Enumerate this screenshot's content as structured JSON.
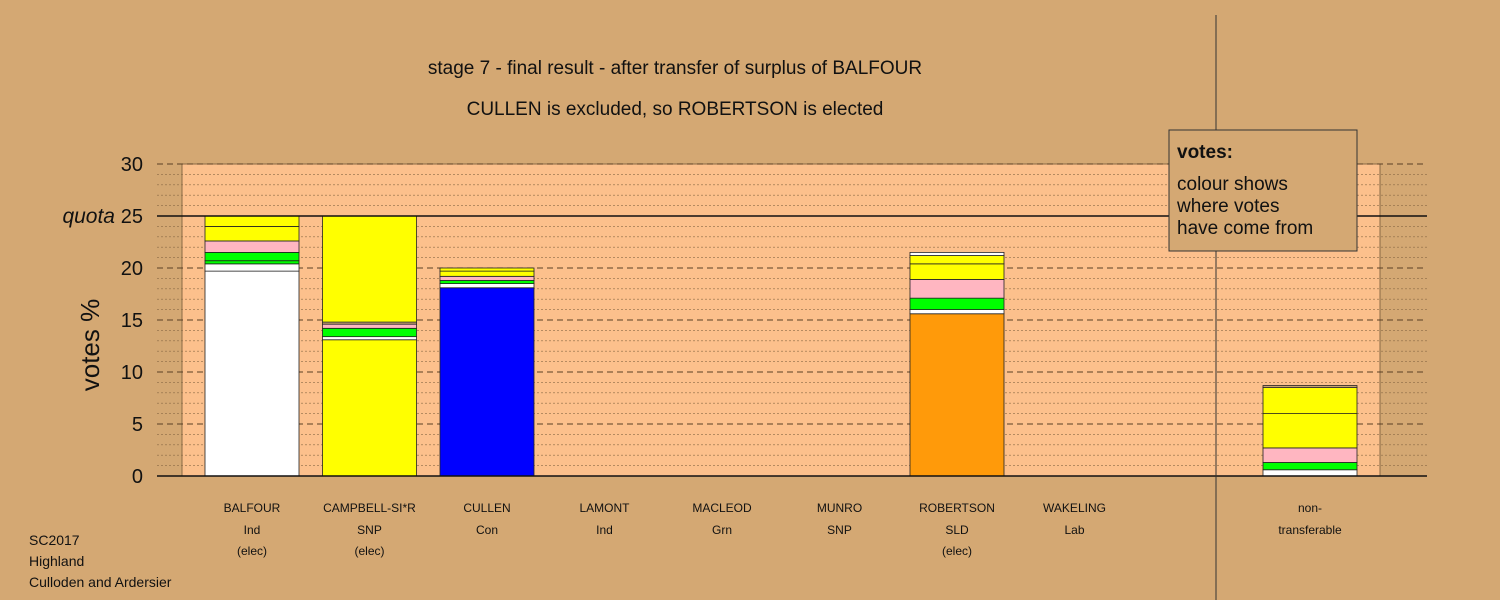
{
  "chart_data": {
    "type": "bar",
    "title": "stage 7 - final result - after transfer of surplus of BALFOUR",
    "subtitle": "CULLEN is excluded, so ROBERTSON is elected",
    "ylabel": "votes %",
    "ylim": [
      0,
      30
    ],
    "yticks": [
      "0",
      "5",
      "10",
      "15",
      "20",
      "25",
      "30"
    ],
    "quota": {
      "label": "quota",
      "value": 25
    },
    "legend": {
      "title": "votes:",
      "lines": [
        "colour shows",
        "where votes",
        "have come from"
      ],
      "placement": "top-right"
    },
    "colors": {
      "Ind": "#ffffff",
      "SNP": "#ffff00",
      "Con": "#0000ff",
      "SLD": "#ff9a0a",
      "Lab": "#ff0000",
      "Grn": "#00ff00",
      "pink": "#ffb6c1",
      "thin": "#c8a36f",
      "background": "#d4a873",
      "panel": "#fcc08c"
    },
    "categories": [
      {
        "name": "BALFOUR",
        "party": "Ind",
        "status": "(elec)",
        "segments": [
          {
            "value": 19.7,
            "color": "#ffffff"
          },
          {
            "value": 0.7,
            "color": "#ffffff"
          },
          {
            "value": 0.3,
            "color": "#00ff00"
          },
          {
            "value": 0.8,
            "color": "#00ff00"
          },
          {
            "value": 1.1,
            "color": "#ffb6c1"
          },
          {
            "value": 1.4,
            "color": "#ffff00"
          },
          {
            "value": 1.0,
            "color": "#ffff00"
          }
        ]
      },
      {
        "name": "CAMPBELL-SI*R",
        "party": "SNP",
        "status": "(elec)",
        "segments": [
          {
            "value": 13.1,
            "color": "#ffff00"
          },
          {
            "value": 0.3,
            "color": "#ffffff"
          },
          {
            "value": 0.8,
            "color": "#00ff00"
          },
          {
            "value": 0.4,
            "color": "#ffb6c1"
          },
          {
            "value": 0.2,
            "color": "#c8a36f"
          },
          {
            "value": 10.2,
            "color": "#ffff00"
          }
        ]
      },
      {
        "name": "CULLEN",
        "party": "Con",
        "status": "",
        "segments": [
          {
            "value": 18.1,
            "color": "#0000ff"
          },
          {
            "value": 0.4,
            "color": "#ffffff"
          },
          {
            "value": 0.3,
            "color": "#00ff00"
          },
          {
            "value": 0.4,
            "color": "#ffb6c1"
          },
          {
            "value": 0.5,
            "color": "#ffff00"
          },
          {
            "value": 0.3,
            "color": "#ffff00"
          }
        ]
      },
      {
        "name": "LAMONT",
        "party": "Ind",
        "status": "",
        "segments": []
      },
      {
        "name": "MACLEOD",
        "party": "Grn",
        "status": "",
        "segments": []
      },
      {
        "name": "MUNRO",
        "party": "SNP",
        "status": "",
        "segments": []
      },
      {
        "name": "ROBERTSON",
        "party": "SLD",
        "status": "(elec)",
        "segments": [
          {
            "value": 15.6,
            "color": "#ff9a0a"
          },
          {
            "value": 0.4,
            "color": "#ffffff"
          },
          {
            "value": 1.1,
            "color": "#00ff00"
          },
          {
            "value": 1.8,
            "color": "#ffb6c1"
          },
          {
            "value": 1.5,
            "color": "#ffff00"
          },
          {
            "value": 0.8,
            "color": "#ffff00"
          },
          {
            "value": 0.3,
            "color": "#ffffff"
          }
        ]
      },
      {
        "name": "WAKELING",
        "party": "Lab",
        "status": "",
        "segments": []
      }
    ],
    "nontransferable": {
      "label_lines": [
        "non-",
        "transferable"
      ],
      "segments": [
        {
          "value": 0.6,
          "color": "#ffffff"
        },
        {
          "value": 0.7,
          "color": "#00ff00"
        },
        {
          "value": 1.4,
          "color": "#ffb6c1"
        },
        {
          "value": 3.3,
          "color": "#ffff00"
        },
        {
          "value": 2.5,
          "color": "#ffff00"
        },
        {
          "value": 0.2,
          "color": "#c8a36f"
        }
      ]
    }
  },
  "footer": {
    "line1": "SC2017",
    "line2": "Highland",
    "line3": "Culloden and Ardersier"
  }
}
